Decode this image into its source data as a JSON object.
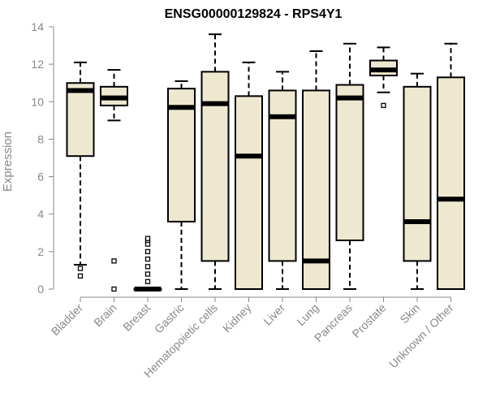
{
  "chart_data": {
    "type": "boxplot",
    "title": "ENSG00000129824 - RPS4Y1",
    "xlabel": "",
    "ylabel": "Expression",
    "ylim": [
      0,
      14
    ],
    "yticks": [
      0,
      2,
      4,
      6,
      8,
      10,
      12,
      14
    ],
    "grid": false,
    "box_fill": "#EEE8D0",
    "box_stroke": "#000000",
    "categories": [
      "Bladder",
      "Brain",
      "Breast",
      "Gastric",
      "Hematopoietic cells",
      "Kidney",
      "Liver",
      "Lung",
      "Pancreas",
      "Prostate",
      "Skin",
      "Unknown / Other"
    ],
    "boxes": [
      {
        "name": "Bladder",
        "min": 1.3,
        "q1": 7.1,
        "median": 10.6,
        "q3": 11.0,
        "max": 12.1,
        "outliers": [
          0.7,
          1.1
        ]
      },
      {
        "name": "Brain",
        "min": 9.0,
        "q1": 9.8,
        "median": 10.2,
        "q3": 10.8,
        "max": 11.7,
        "outliers": [
          0.0,
          1.5
        ]
      },
      {
        "name": "Breast",
        "min": 0.0,
        "q1": 0.0,
        "median": 0.0,
        "q3": 0.0,
        "max": 0.0,
        "outliers": [
          0.4,
          0.8,
          1.2,
          1.6,
          2.0,
          2.4,
          2.6,
          2.7
        ]
      },
      {
        "name": "Gastric",
        "min": 0.0,
        "q1": 3.6,
        "median": 9.7,
        "q3": 10.7,
        "max": 11.1,
        "outliers": []
      },
      {
        "name": "Hematopoietic cells",
        "min": 0.0,
        "q1": 1.5,
        "median": 9.9,
        "q3": 11.6,
        "max": 13.6,
        "outliers": []
      },
      {
        "name": "Kidney",
        "min": 0.0,
        "q1": 0.0,
        "median": 7.1,
        "q3": 10.3,
        "max": 12.1,
        "outliers": []
      },
      {
        "name": "Liver",
        "min": 0.0,
        "q1": 1.5,
        "median": 9.2,
        "q3": 10.6,
        "max": 11.6,
        "outliers": []
      },
      {
        "name": "Lung",
        "min": 0.0,
        "q1": 0.0,
        "median": 1.5,
        "q3": 10.6,
        "max": 12.7,
        "outliers": []
      },
      {
        "name": "Pancreas",
        "min": 0.0,
        "q1": 2.6,
        "median": 10.2,
        "q3": 10.9,
        "max": 13.1,
        "outliers": []
      },
      {
        "name": "Prostate",
        "min": 10.5,
        "q1": 11.4,
        "median": 11.7,
        "q3": 12.2,
        "max": 12.9,
        "outliers": [
          9.8
        ]
      },
      {
        "name": "Skin",
        "min": 0.0,
        "q1": 1.5,
        "median": 3.6,
        "q3": 10.8,
        "max": 11.5,
        "outliers": []
      },
      {
        "name": "Unknown / Other",
        "min": 0.0,
        "q1": 0.0,
        "median": 4.8,
        "q3": 11.3,
        "max": 13.1,
        "outliers": []
      }
    ]
  }
}
